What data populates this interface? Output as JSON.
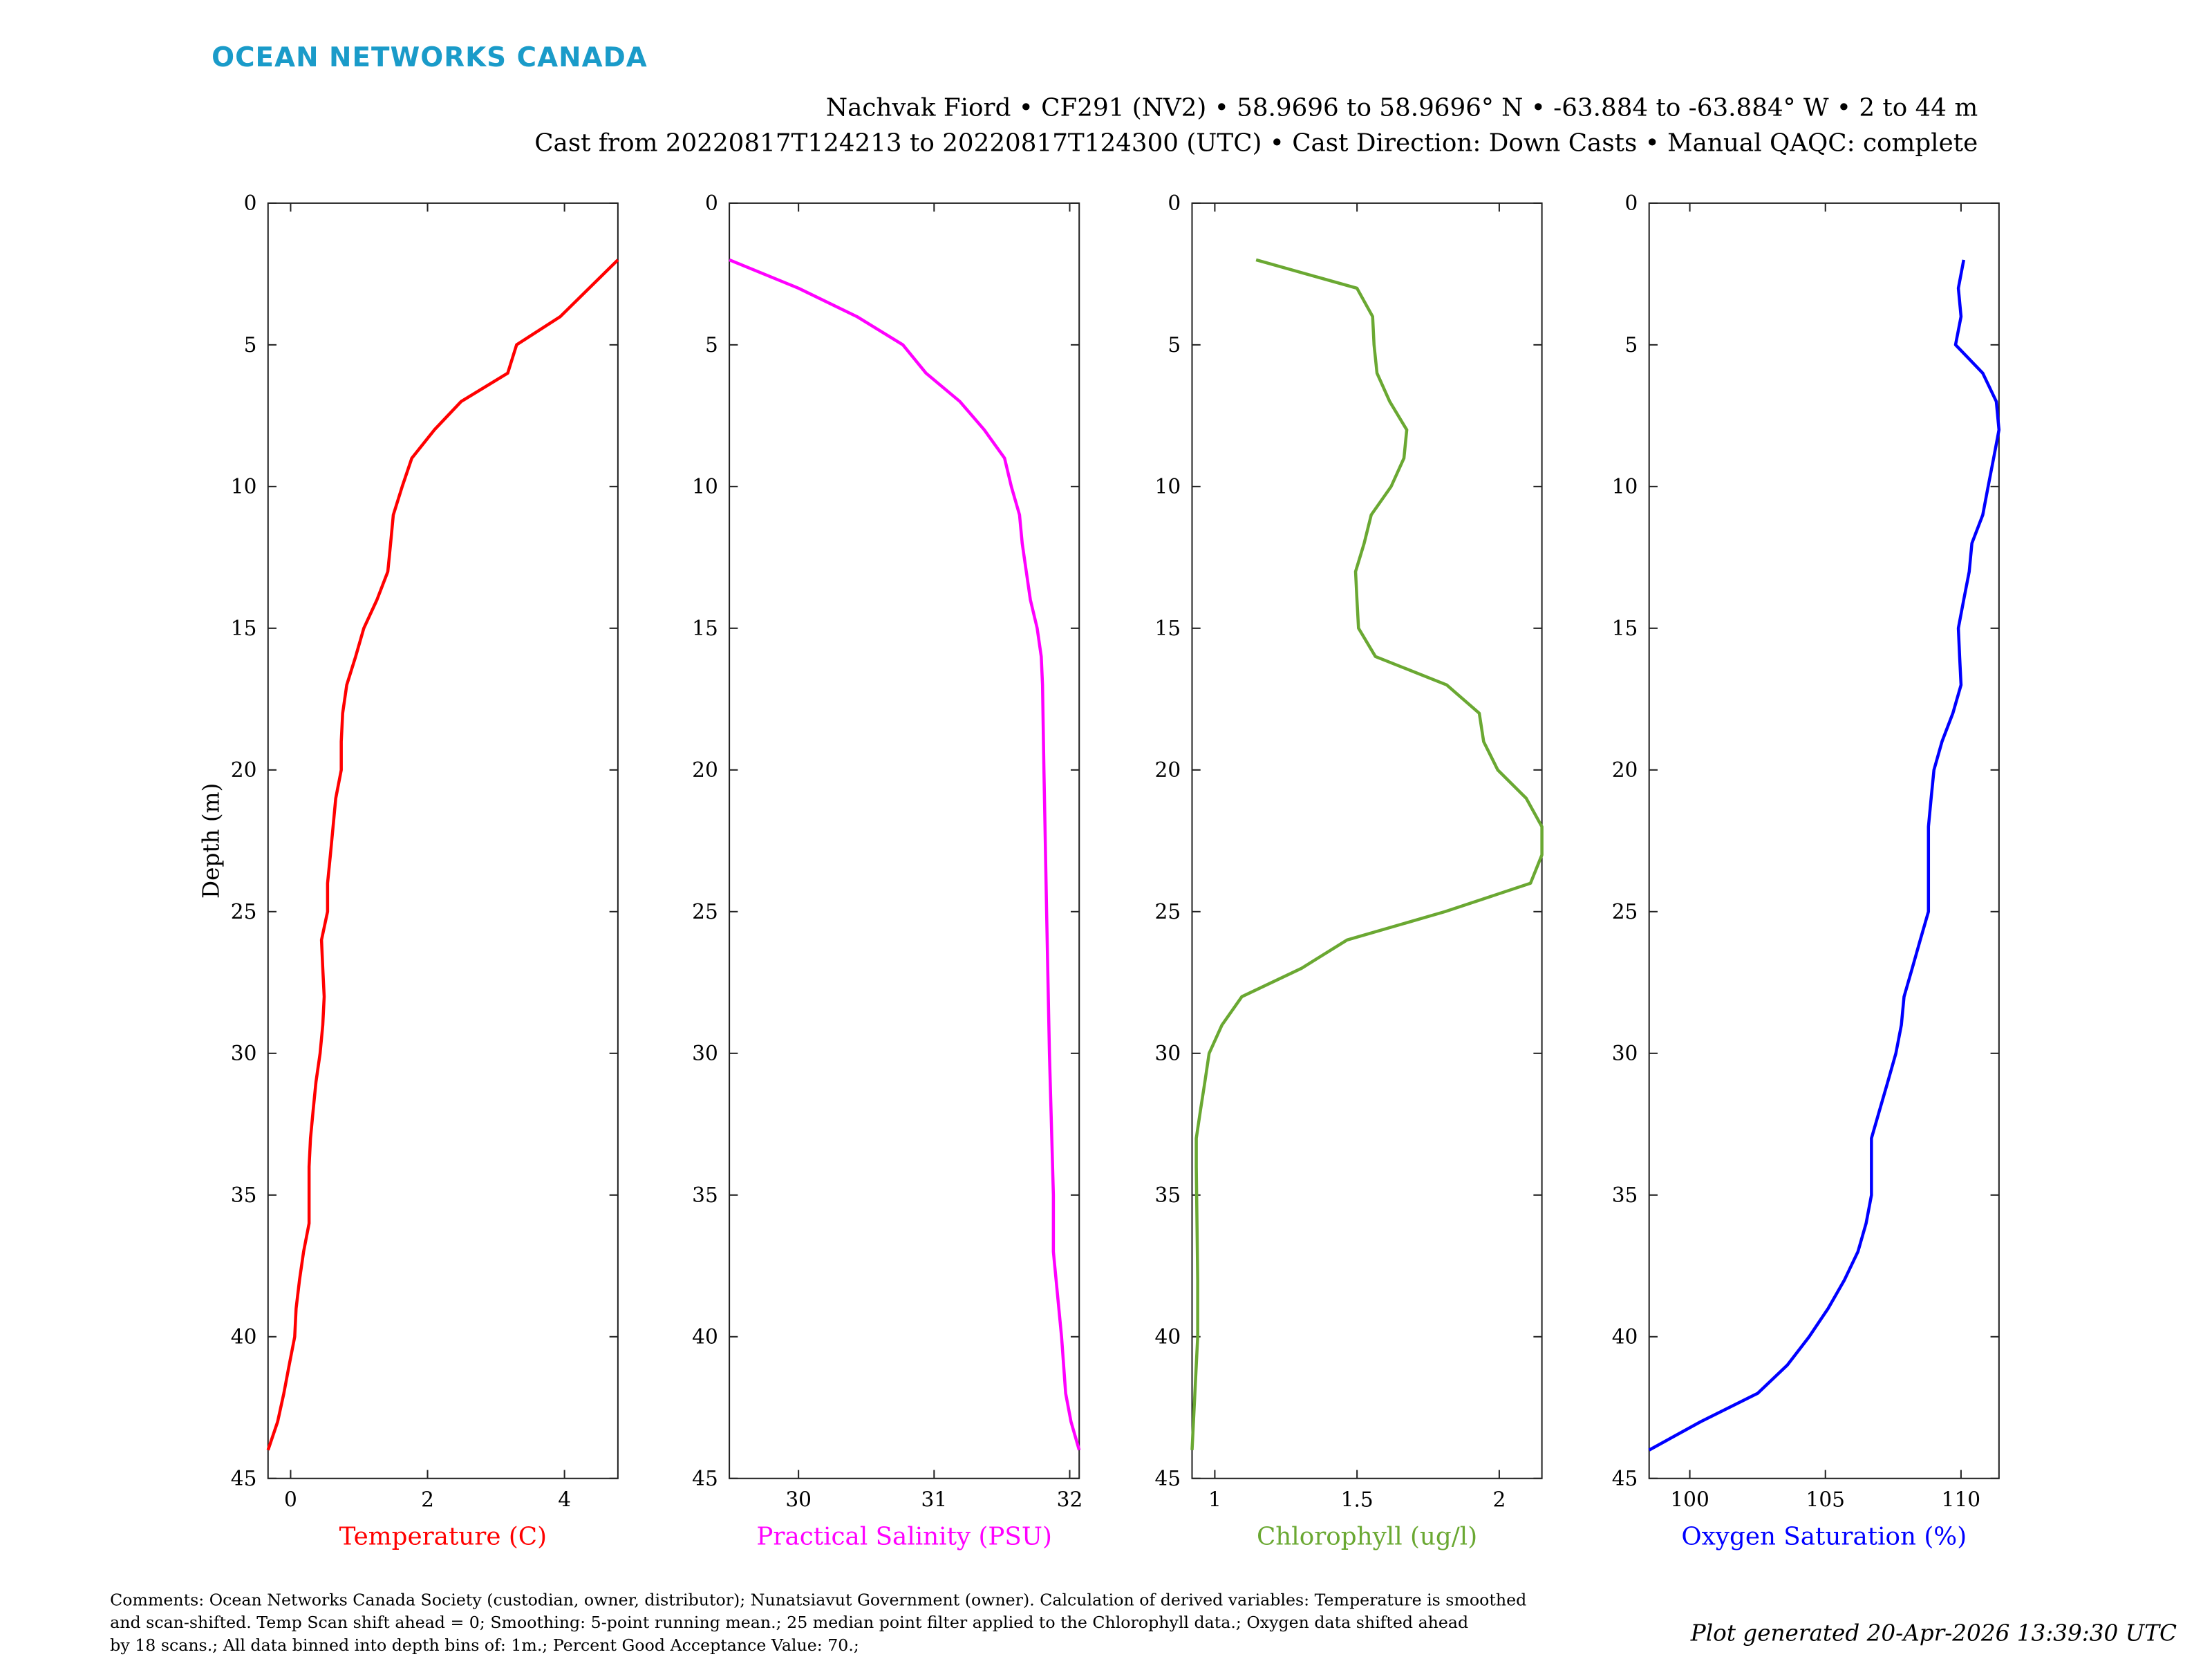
{
  "brand": {
    "name": "OCEAN NETWORKS CANADA",
    "color": "#1a9bc9"
  },
  "header": {
    "line1": "Nachvak Fiord • CF291 (NV2) • 58.9696 to 58.9696° N • -63.884 to -63.884° W • 2 to 44 m",
    "line2": "Cast from 20220817T124213 to 20220817T124300 (UTC) • Cast Direction: Down Casts • Manual QAQC: complete"
  },
  "footer": {
    "comments": [
      "Comments: Ocean Networks Canada Society (custodian, owner, distributor); Nunatsiavut Government (owner). Calculation of derived variables: Temperature is smoothed",
      "and scan-shifted. Temp Scan shift ahead = 0; Smoothing: 5-point running mean.; 25 median point filter applied to the Chlorophyll data.; Oxygen data shifted ahead",
      "by 18 scans.; All data binned into depth bins of: 1m.; Percent Good Acceptance Value: 70.;"
    ],
    "generated": "Plot generated 20-Apr-2026 13:39:30 UTC"
  },
  "chart_data": [
    {
      "type": "line",
      "title": "",
      "xlabel": "Temperature (C)",
      "ylabel": "Depth (m)",
      "color": "#ff0000",
      "xlim": [
        -0.33,
        4.78
      ],
      "ylim": [
        0,
        45
      ],
      "xticks": [
        0,
        2,
        4
      ],
      "yticks": [
        0,
        5,
        10,
        15,
        20,
        25,
        30,
        35,
        40,
        45
      ],
      "depth": [
        2,
        4,
        5,
        6,
        7,
        8,
        9,
        10,
        11,
        12,
        13,
        14,
        15,
        16,
        17,
        18,
        19,
        20,
        21,
        22,
        23,
        24,
        25,
        26,
        27,
        28,
        29,
        30,
        31,
        32,
        33,
        34,
        35,
        36,
        37,
        38,
        39,
        40,
        41,
        42,
        43,
        44
      ],
      "values": [
        4.78,
        3.94,
        3.3,
        3.17,
        2.49,
        2.1,
        1.77,
        1.63,
        1.5,
        1.46,
        1.42,
        1.26,
        1.07,
        0.95,
        0.82,
        0.76,
        0.74,
        0.74,
        0.66,
        0.62,
        0.58,
        0.54,
        0.54,
        0.45,
        0.47,
        0.49,
        0.47,
        0.43,
        0.37,
        0.33,
        0.29,
        0.27,
        0.27,
        0.27,
        0.19,
        0.13,
        0.08,
        0.06,
        -0.02,
        -0.1,
        -0.19,
        -0.33
      ]
    },
    {
      "type": "line",
      "title": "",
      "xlabel": "Practical Salinity (PSU)",
      "ylabel": "",
      "color": "#ff00ff",
      "xlim": [
        29.49,
        32.07
      ],
      "ylim": [
        0,
        45
      ],
      "xticks": [
        30,
        31,
        32
      ],
      "yticks": [
        0,
        5,
        10,
        15,
        20,
        25,
        30,
        35,
        40,
        45
      ],
      "depth": [
        2,
        3,
        4,
        5,
        6,
        7,
        8,
        9,
        10,
        11,
        12,
        13,
        14,
        15,
        16,
        17,
        20,
        25,
        30,
        35,
        37,
        40,
        42,
        43,
        44
      ],
      "values": [
        29.49,
        30.0,
        30.43,
        30.77,
        30.94,
        31.19,
        31.37,
        31.52,
        31.57,
        31.63,
        31.65,
        31.68,
        31.71,
        31.76,
        31.79,
        31.8,
        31.81,
        31.83,
        31.85,
        31.88,
        31.88,
        31.94,
        31.97,
        32.01,
        32.07
      ]
    },
    {
      "type": "line",
      "title": "",
      "xlabel": "Chlorophyll (ug/l)",
      "ylabel": "",
      "color": "#6aa832",
      "xlim": [
        0.92,
        2.15
      ],
      "ylim": [
        0,
        45
      ],
      "xticks": [
        1,
        1.5,
        2
      ],
      "yticks": [
        0,
        5,
        10,
        15,
        20,
        25,
        30,
        35,
        40,
        45
      ],
      "depth": [
        2,
        3,
        4,
        5,
        6,
        7,
        8,
        9,
        10,
        11,
        12,
        13,
        14,
        15,
        16,
        17,
        18,
        19,
        20,
        21,
        22,
        23,
        24,
        25,
        26,
        27,
        28,
        29,
        30,
        31,
        32,
        33,
        34,
        38,
        40,
        41,
        42,
        43,
        44
      ],
      "values": [
        1.145,
        1.5,
        1.555,
        1.56,
        1.57,
        1.615,
        1.675,
        1.665,
        1.62,
        1.55,
        1.525,
        1.495,
        1.5,
        1.505,
        1.565,
        1.815,
        1.93,
        1.945,
        1.995,
        2.095,
        2.15,
        2.15,
        2.11,
        1.81,
        1.465,
        1.305,
        1.095,
        1.025,
        0.98,
        0.965,
        0.95,
        0.935,
        0.935,
        0.94,
        0.94,
        0.935,
        0.93,
        0.925,
        0.92
      ]
    },
    {
      "type": "line",
      "title": "",
      "xlabel": "Oxygen Saturation (%)",
      "ylabel": "",
      "color": "#0000ff",
      "xlim": [
        98.5,
        111.4
      ],
      "ylim": [
        0,
        45
      ],
      "xticks": [
        100,
        105,
        110
      ],
      "yticks": [
        0,
        5,
        10,
        15,
        20,
        25,
        30,
        35,
        40,
        45
      ],
      "depth": [
        2,
        3,
        4,
        5,
        6,
        7,
        8,
        9,
        10,
        11,
        12,
        13,
        14,
        15,
        16,
        17,
        18,
        19,
        20,
        21,
        22,
        23,
        24,
        25,
        26,
        27,
        28,
        29,
        30,
        31,
        32,
        33,
        34,
        35,
        36,
        37,
        38,
        39,
        40,
        41,
        42,
        43,
        44
      ],
      "values": [
        110.1,
        109.9,
        110.0,
        109.8,
        110.8,
        111.3,
        111.4,
        111.2,
        111.0,
        110.8,
        110.4,
        110.3,
        110.1,
        109.9,
        109.95,
        110.0,
        109.7,
        109.3,
        109.0,
        108.9,
        108.8,
        108.8,
        108.8,
        108.8,
        108.5,
        108.2,
        107.9,
        107.8,
        107.6,
        107.3,
        107.0,
        106.7,
        106.7,
        106.7,
        106.5,
        106.2,
        105.7,
        105.1,
        104.4,
        103.6,
        102.5,
        100.4,
        98.5
      ]
    }
  ]
}
